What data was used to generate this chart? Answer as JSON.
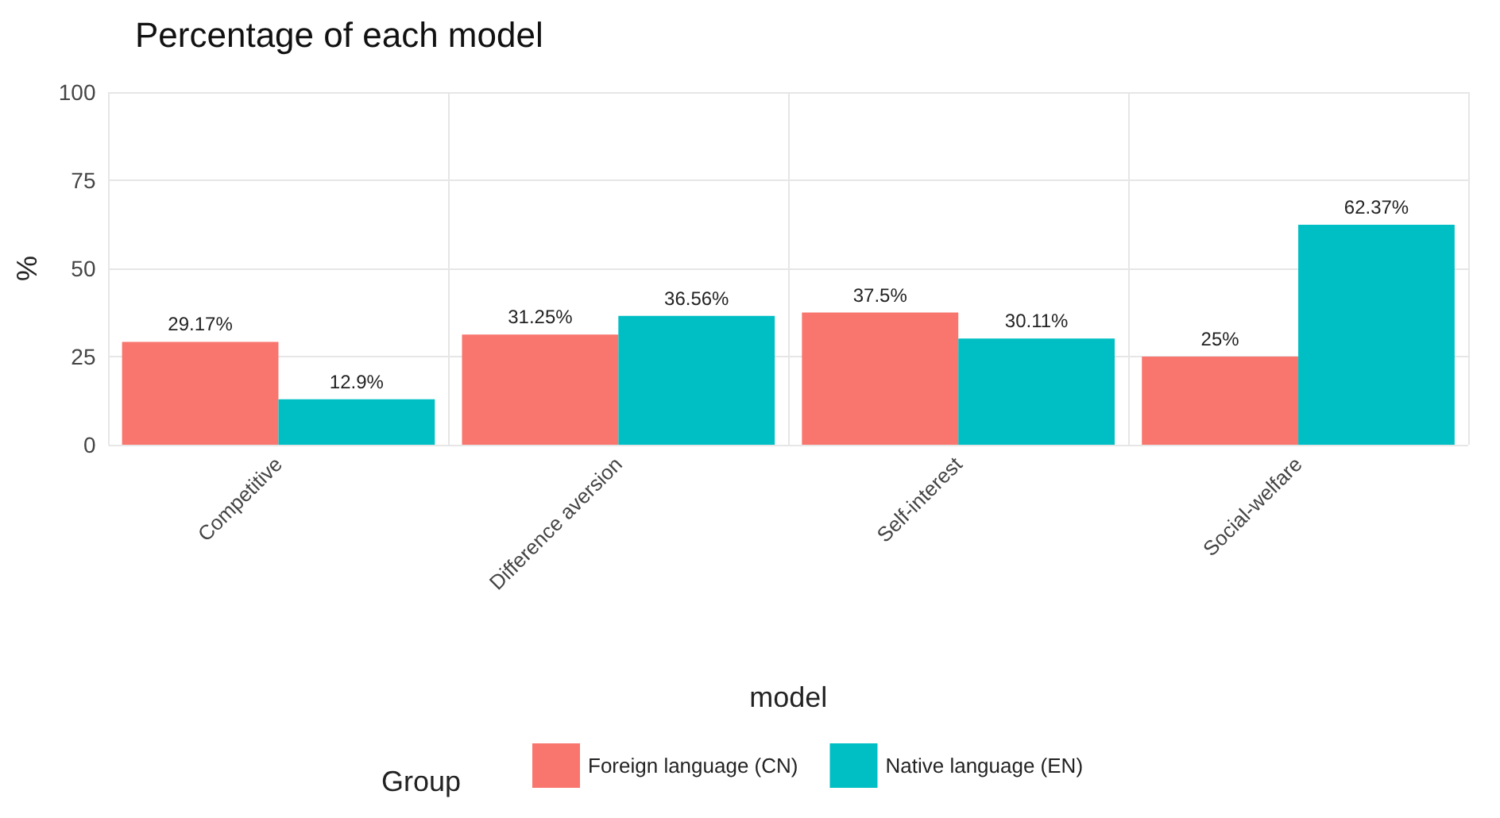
{
  "chart_data": {
    "type": "bar",
    "title": "Percentage of each model",
    "xlabel": "model",
    "ylabel": "%",
    "legend_title": "Group",
    "categories": [
      "Competitive",
      "Difference aversion",
      "Self-interest",
      "Social-welfare"
    ],
    "series": [
      {
        "name": "Foreign language (CN)",
        "color": "#f8766d",
        "values": [
          29.17,
          31.25,
          37.5,
          25
        ],
        "value_labels": [
          "29.17%",
          "31.25%",
          "37.5%",
          "25%"
        ]
      },
      {
        "name": "Native language (EN)",
        "color": "#00bfc4",
        "values": [
          12.9,
          36.56,
          30.11,
          62.37
        ],
        "value_labels": [
          "12.9%",
          "36.56%",
          "30.11%",
          "62.37%"
        ]
      }
    ],
    "ylim": [
      0,
      100
    ],
    "yticks": [
      0,
      25,
      50,
      75,
      100
    ],
    "grid": true,
    "legend": "bottom"
  }
}
